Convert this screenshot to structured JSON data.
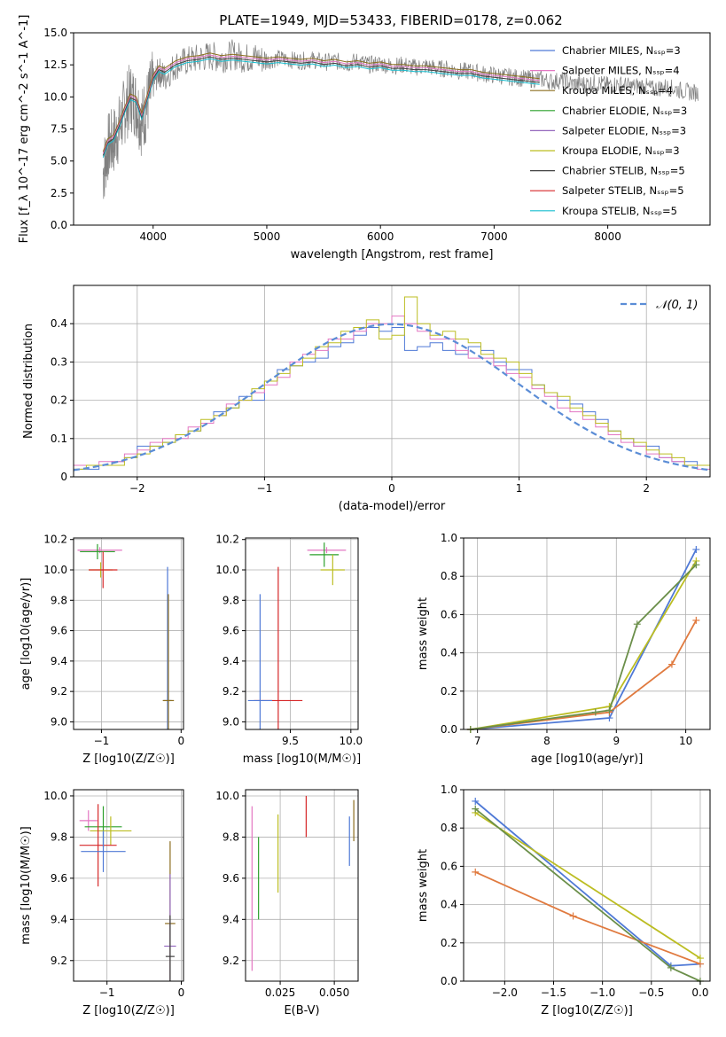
{
  "figure": {
    "title": "PLATE=1949, MJD=53433, FIBERID=0178, z=0.062"
  },
  "colors": {
    "data": "#808080",
    "normal": "#5b8dd6",
    "models": [
      "#4f79d6",
      "#e377c2",
      "#8c6d1f",
      "#2ca02c",
      "#9467bd",
      "#bcbd22",
      "#404040",
      "#d62728",
      "#17becf"
    ]
  },
  "legend": {
    "models": [
      "Chabrier MILES, N_SSP=3",
      "Salpeter MILES, N_SSP=4",
      "Kroupa MILES, N_SSP=4",
      "Chabrier ELODIE, N_SSP=3",
      "Salpeter ELODIE, N_SSP=3",
      "Kroupa ELODIE, N_SSP=3",
      "Chabrier STELIB, N_SSP=5",
      "Salpeter STELIB, N_SSP=5",
      "Kroupa STELIB, N_SSP=5"
    ],
    "normal": "𝒩(0, 1)"
  },
  "chart_data": [
    {
      "id": "spectrum",
      "type": "line",
      "xlabel": "wavelength [Angstrom, rest frame]",
      "ylabel": "Flux [f_λ 10^-17 erg cm^-2 s^-1 A^-1]",
      "xlim": [
        3300,
        8900
      ],
      "ylim": [
        0,
        15
      ],
      "xticks": [
        4000,
        5000,
        6000,
        7000,
        8000
      ],
      "yticks": [
        0.0,
        2.5,
        5.0,
        7.5,
        10.0,
        12.5,
        15.0
      ],
      "ytick_labels": [
        "0.0",
        "2.5",
        "5.0",
        "7.5",
        "10.0",
        "12.5",
        "15.0"
      ],
      "grid": false,
      "legend_position": "right",
      "series": [
        {
          "name": "data",
          "x": [
            3560,
            3600,
            3650,
            3700,
            3750,
            3800,
            3850,
            3900,
            3950,
            4000,
            4050,
            4100,
            4200,
            4300,
            4400,
            4500,
            4600,
            4700,
            4800,
            4900,
            5000,
            5100,
            5200,
            5300,
            5400,
            5500,
            5600,
            5700,
            5800,
            5900,
            6000,
            6100,
            6200,
            6300,
            6400,
            6500,
            6600,
            6700,
            6800,
            6900,
            7000,
            7100,
            7200,
            7300,
            7400,
            7500,
            7600,
            7700,
            7800,
            7900,
            8000,
            8100,
            8200,
            8300,
            8400,
            8500,
            8600,
            8700,
            8800
          ],
          "y": [
            4.0,
            6.0,
            6.5,
            7.5,
            9.0,
            10.0,
            9.5,
            8.0,
            9.5,
            11.0,
            12.0,
            11.5,
            12.5,
            12.8,
            13.0,
            13.2,
            13.0,
            13.3,
            13.0,
            13.1,
            12.8,
            13.0,
            12.9,
            12.8,
            12.9,
            12.7,
            12.8,
            12.6,
            12.8,
            12.5,
            12.6,
            12.4,
            12.5,
            12.3,
            12.4,
            12.2,
            12.2,
            12.0,
            12.0,
            11.8,
            11.7,
            11.6,
            11.5,
            11.4,
            11.4,
            11.2,
            11.3,
            11.0,
            11.0,
            11.1,
            10.9,
            11.0,
            10.8,
            10.9,
            10.6,
            10.8,
            10.6,
            10.4,
            10.3
          ]
        },
        {
          "name": "model",
          "x": [
            3560,
            3600,
            3650,
            3700,
            3750,
            3800,
            3850,
            3900,
            3950,
            4000,
            4050,
            4100,
            4200,
            4300,
            4400,
            4500,
            4600,
            4700,
            4800,
            4900,
            5000,
            5100,
            5200,
            5300,
            5400,
            5500,
            5600,
            5700,
            5800,
            5900,
            6000,
            6100,
            6200,
            6300,
            6400,
            6500,
            6600,
            6700,
            6800,
            6900,
            7000,
            7100,
            7200,
            7300,
            7400
          ],
          "y": [
            5.5,
            6.5,
            6.8,
            7.8,
            9.0,
            10.0,
            9.8,
            8.5,
            10.0,
            11.5,
            12.2,
            12.0,
            12.6,
            12.9,
            13.0,
            13.2,
            13.0,
            13.1,
            13.0,
            12.9,
            12.8,
            12.9,
            12.8,
            12.7,
            12.8,
            12.6,
            12.7,
            12.5,
            12.6,
            12.4,
            12.5,
            12.3,
            12.3,
            12.2,
            12.2,
            12.1,
            12.0,
            11.9,
            11.9,
            11.7,
            11.6,
            11.5,
            11.4,
            11.3,
            11.2
          ]
        }
      ]
    },
    {
      "id": "residual_histogram",
      "type": "line",
      "xlabel": "(data-model)/error",
      "ylabel": "Normed distribution",
      "xlim": [
        -2.5,
        2.5
      ],
      "ylim": [
        0,
        0.5
      ],
      "xticks": [
        -2,
        -1,
        0,
        1,
        2
      ],
      "yticks": [
        0.0,
        0.1,
        0.2,
        0.3,
        0.4
      ],
      "grid": true,
      "legend_position": "top-right",
      "x": [
        -2.5,
        -2.4,
        -2.3,
        -2.2,
        -2.1,
        -2.0,
        -1.9,
        -1.8,
        -1.7,
        -1.6,
        -1.5,
        -1.4,
        -1.3,
        -1.2,
        -1.1,
        -1.0,
        -0.9,
        -0.8,
        -0.7,
        -0.6,
        -0.5,
        -0.4,
        -0.3,
        -0.2,
        -0.1,
        0.0,
        0.1,
        0.2,
        0.3,
        0.4,
        0.5,
        0.6,
        0.7,
        0.8,
        0.9,
        1.0,
        1.1,
        1.2,
        1.3,
        1.4,
        1.5,
        1.6,
        1.7,
        1.8,
        1.9,
        2.0,
        2.1,
        2.2,
        2.3,
        2.4
      ],
      "series": [
        {
          "name": "Chabrier MILES, N_SSP=3",
          "values": [
            0.02,
            0.02,
            0.03,
            0.04,
            0.05,
            0.08,
            0.08,
            0.09,
            0.11,
            0.12,
            0.14,
            0.17,
            0.18,
            0.21,
            0.2,
            0.25,
            0.28,
            0.29,
            0.3,
            0.31,
            0.34,
            0.35,
            0.37,
            0.39,
            0.38,
            0.39,
            0.33,
            0.34,
            0.35,
            0.33,
            0.32,
            0.34,
            0.33,
            0.3,
            0.28,
            0.28,
            0.24,
            0.22,
            0.2,
            0.19,
            0.17,
            0.15,
            0.12,
            0.1,
            0.08,
            0.08,
            0.05,
            0.04,
            0.04,
            0.03
          ]
        },
        {
          "name": "Salpeter MILES, N_SSP=4",
          "values": [
            0.03,
            0.03,
            0.04,
            0.04,
            0.06,
            0.07,
            0.09,
            0.1,
            0.1,
            0.13,
            0.14,
            0.16,
            0.19,
            0.2,
            0.22,
            0.24,
            0.26,
            0.3,
            0.32,
            0.33,
            0.36,
            0.36,
            0.38,
            0.4,
            0.4,
            0.42,
            0.4,
            0.38,
            0.36,
            0.36,
            0.33,
            0.31,
            0.31,
            0.29,
            0.27,
            0.26,
            0.23,
            0.21,
            0.18,
            0.17,
            0.15,
            0.13,
            0.11,
            0.09,
            0.08,
            0.06,
            0.05,
            0.04,
            0.03,
            0.02
          ]
        },
        {
          "name": "Kroupa ELODIE, N_SSP=3",
          "values": [
            0.02,
            0.03,
            0.03,
            0.03,
            0.05,
            0.06,
            0.08,
            0.09,
            0.11,
            0.12,
            0.15,
            0.16,
            0.18,
            0.2,
            0.23,
            0.25,
            0.27,
            0.29,
            0.31,
            0.34,
            0.35,
            0.38,
            0.39,
            0.41,
            0.36,
            0.37,
            0.47,
            0.4,
            0.37,
            0.38,
            0.36,
            0.35,
            0.32,
            0.31,
            0.3,
            0.27,
            0.24,
            0.22,
            0.21,
            0.18,
            0.16,
            0.14,
            0.12,
            0.1,
            0.09,
            0.07,
            0.06,
            0.05,
            0.03,
            0.03
          ]
        }
      ],
      "normal_curve": {
        "name": "𝒩(0, 1)",
        "mean": 0,
        "sigma": 1
      }
    },
    {
      "id": "age_vs_Z",
      "type": "scatter",
      "xlabel": "Z [log10(Z/Z☉)]",
      "ylabel": "age  [log10(age/yr)]",
      "xlim": [
        -1.35,
        0.03
      ],
      "ylim": [
        8.95,
        10.21
      ],
      "xticks": [
        -1,
        0
      ],
      "yticks": [
        9.0,
        9.2,
        9.4,
        9.6,
        9.8,
        10.0,
        10.2
      ],
      "ytick_labels": [
        "9.0",
        "9.2",
        "9.4",
        "9.6",
        "9.8",
        "10.0",
        "10.2"
      ],
      "grid": true,
      "points": [
        {
          "x": -1.02,
          "y": 10.13,
          "xerr": 0.28,
          "yerr": 0.02
        },
        {
          "x": -1.05,
          "y": 10.12,
          "xerr": 0.22,
          "yerr": 0.05
        },
        {
          "x": -1.01,
          "y": 10.0,
          "xerr": 0.15,
          "yerr": 0.05
        },
        {
          "x": -0.98,
          "y": 10.0,
          "xerr": 0.18,
          "yerr": 0.12
        },
        {
          "x": -0.17,
          "y": 9.14,
          "xerr": 0.05,
          "yerr": 0.88
        },
        {
          "x": -0.16,
          "y": 9.14,
          "xerr": 0.07,
          "yerr": 0.7
        }
      ]
    },
    {
      "id": "age_vs_mass",
      "type": "scatter",
      "xlabel": "mass [log10(M/M☉)]",
      "ylabel": "",
      "xlim": [
        9.13,
        10.06
      ],
      "ylim": [
        8.95,
        10.21
      ],
      "xticks": [
        9.5,
        10.0
      ],
      "xtick_labels": [
        "9.5",
        "10.0"
      ],
      "yticks": [
        9.0,
        9.2,
        9.4,
        9.6,
        9.8,
        10.0,
        10.2
      ],
      "ytick_labels": [
        "9.0",
        "9.2",
        "9.4",
        "9.6",
        "9.8",
        "10.0",
        "10.2"
      ],
      "grid": true,
      "points": [
        {
          "x": 9.8,
          "y": 10.13,
          "xerr": 0.16,
          "yerr": 0.02
        },
        {
          "x": 9.78,
          "y": 10.1,
          "xerr": 0.12,
          "yerr": 0.08
        },
        {
          "x": 9.85,
          "y": 10.0,
          "xerr": 0.1,
          "yerr": 0.1
        },
        {
          "x": 9.4,
          "y": 9.14,
          "xerr": 0.2,
          "yerr": 0.88
        },
        {
          "x": 9.25,
          "y": 9.14,
          "xerr": 0.1,
          "yerr": 0.7
        }
      ]
    },
    {
      "id": "massweight_vs_age",
      "type": "line",
      "xlabel": "age  [log10(age/yr)]",
      "ylabel": "mass weight",
      "xlim": [
        6.8,
        10.35
      ],
      "ylim": [
        0,
        1
      ],
      "xticks": [
        7,
        8,
        9,
        10
      ],
      "yticks": [
        0.0,
        0.2,
        0.4,
        0.6,
        0.8,
        1.0
      ],
      "ytick_labels": [
        "0.0",
        "0.2",
        "0.4",
        "0.6",
        "0.8",
        "1.0"
      ],
      "grid": true,
      "series": [
        {
          "name": "Chabrier MILES, N_SSP=3",
          "x": [
            6.9,
            8.9,
            10.15
          ],
          "y": [
            0.0,
            0.06,
            0.94
          ]
        },
        {
          "name": "Salpeter MILES, N_SSP=4",
          "x": [
            6.9,
            8.9,
            9.8,
            10.15
          ],
          "y": [
            0.0,
            0.09,
            0.34,
            0.57
          ]
        },
        {
          "name": "Kroupa ELODIE, N_SSP=3",
          "x": [
            6.9,
            8.9,
            10.15
          ],
          "y": [
            0.0,
            0.12,
            0.88
          ]
        },
        {
          "name": "Kroupa STELIB, N_SSP=5",
          "x": [
            6.9,
            8.7,
            8.9,
            9.3,
            10.15
          ],
          "y": [
            0.0,
            0.09,
            0.1,
            0.55,
            0.86
          ]
        }
      ]
    },
    {
      "id": "mass_vs_Z",
      "type": "scatter",
      "xlabel": "Z [log10(Z/Z☉)]",
      "ylabel": "mass [log10(M/M☉)]",
      "xlim": [
        -1.45,
        0.03
      ],
      "ylim": [
        9.1,
        10.03
      ],
      "xticks": [
        -1,
        0
      ],
      "yticks": [
        9.2,
        9.4,
        9.6,
        9.8,
        10.0
      ],
      "ytick_labels": [
        "9.2",
        "9.4",
        "9.6",
        "9.8",
        "10.0"
      ],
      "grid": true,
      "points": [
        {
          "x": -1.25,
          "y": 9.88,
          "xerr": 0.12,
          "yerr": 0.05
        },
        {
          "x": -1.05,
          "y": 9.85,
          "xerr": 0.25,
          "yerr": 0.1
        },
        {
          "x": -0.95,
          "y": 9.83,
          "xerr": 0.28,
          "yerr": 0.07
        },
        {
          "x": -1.12,
          "y": 9.76,
          "xerr": 0.25,
          "yerr": 0.2
        },
        {
          "x": -1.05,
          "y": 9.73,
          "xerr": 0.3,
          "yerr": 0.1
        },
        {
          "x": -0.15,
          "y": 9.38,
          "xerr": 0.07,
          "yerr": 0.4
        },
        {
          "x": -0.15,
          "y": 9.27,
          "xerr": 0.08,
          "yerr": 0.35
        },
        {
          "x": -0.15,
          "y": 9.22,
          "xerr": 0.06,
          "yerr": 0.2
        }
      ]
    },
    {
      "id": "mass_vs_EBV",
      "type": "scatter",
      "xlabel": "E(B-V)",
      "ylabel": "",
      "xlim": [
        0.009,
        0.061
      ],
      "ylim": [
        9.1,
        10.03
      ],
      "xticks": [
        0.025,
        0.05
      ],
      "xtick_labels": [
        "0.025",
        "0.050"
      ],
      "yticks": [
        9.2,
        9.4,
        9.6,
        9.8,
        10.0
      ],
      "ytick_labels": [
        "9.2",
        "9.4",
        "9.6",
        "9.8",
        "10.0"
      ],
      "grid": true,
      "points": [
        {
          "x": 0.012,
          "y": 9.55,
          "yerr": 0.4
        },
        {
          "x": 0.015,
          "y": 9.6,
          "yerr": 0.2
        },
        {
          "x": 0.024,
          "y": 9.72,
          "yerr": 0.19
        },
        {
          "x": 0.037,
          "y": 9.9,
          "yerr": 0.1
        },
        {
          "x": 0.057,
          "y": 9.78,
          "yerr": 0.12
        },
        {
          "x": 0.059,
          "y": 9.88,
          "yerr": 0.1
        }
      ]
    },
    {
      "id": "massweight_vs_Z",
      "type": "line",
      "xlabel": "Z [log10(Z/Z☉)]",
      "ylabel": "mass weight",
      "xlim": [
        -2.42,
        0.1
      ],
      "ylim": [
        0,
        1
      ],
      "xticks": [
        -2.0,
        -1.5,
        -1.0,
        -0.5,
        0.0
      ],
      "xtick_labels": [
        "−2.0",
        "−1.5",
        "−1.0",
        "−0.5",
        "0.0"
      ],
      "yticks": [
        0.0,
        0.2,
        0.4,
        0.6,
        0.8,
        1.0
      ],
      "ytick_labels": [
        "0.0",
        "0.2",
        "0.4",
        "0.6",
        "0.8",
        "1.0"
      ],
      "grid": true,
      "series": [
        {
          "name": "Chabrier MILES, N_SSP=3",
          "x": [
            -2.3,
            -0.3,
            0.0
          ],
          "y": [
            0.94,
            0.08,
            0.09
          ]
        },
        {
          "name": "Salpeter MILES, N_SSP=4",
          "x": [
            -2.3,
            -1.3,
            0.0
          ],
          "y": [
            0.57,
            0.34,
            0.09
          ]
        },
        {
          "name": "Kroupa ELODIE, N_SSP=3",
          "x": [
            -2.3,
            0.0
          ],
          "y": [
            0.88,
            0.12
          ]
        },
        {
          "name": "Chabrier ELODIE, N_SSP=3",
          "x": [
            -2.3,
            -0.3,
            0.0
          ],
          "y": [
            0.9,
            0.07,
            0.0
          ]
        }
      ]
    }
  ]
}
